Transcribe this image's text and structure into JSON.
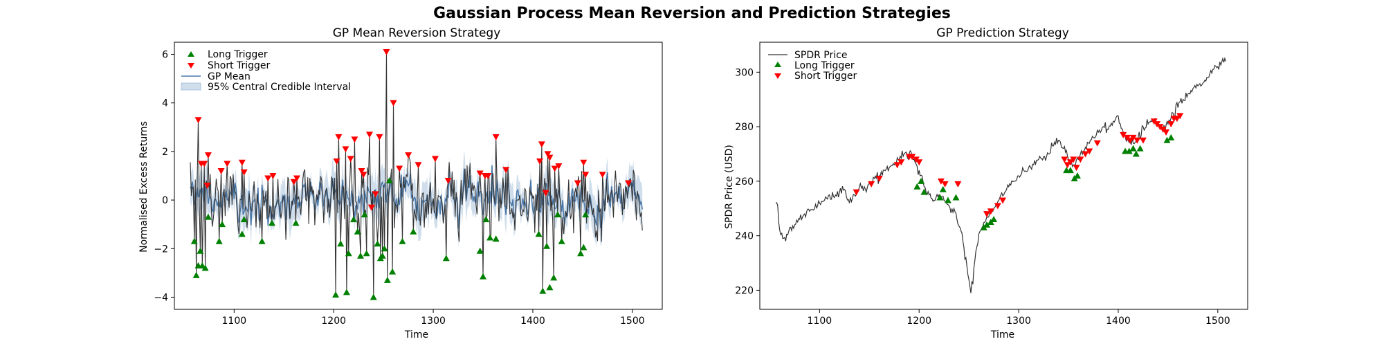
{
  "figure": {
    "title": "Gaussian Process Mean Reversion and Prediction Strategies"
  },
  "chart_data": [
    {
      "type": "line",
      "title": "GP Mean Reversion Strategy",
      "xlabel": "Time",
      "ylabel": "Normalised Excess Returns",
      "xlim": [
        1040,
        1530
      ],
      "ylim": [
        -4.5,
        6.5
      ],
      "xticks": [
        1100,
        1200,
        1300,
        1400,
        1500
      ],
      "yticks": [
        -4,
        -2,
        0,
        2,
        4,
        6
      ],
      "x_start": 1056,
      "x_end": 1510,
      "legend": {
        "placement": "top-left",
        "entries": [
          "Long Trigger",
          "Short Trigger",
          "GP Mean",
          "95% Central Credible Interval"
        ]
      },
      "long_triggers": [
        [
          1060,
          -1.7
        ],
        [
          1062,
          -3.1
        ],
        [
          1064,
          -2.7
        ],
        [
          1066,
          -2.1
        ],
        [
          1068,
          -2.7
        ],
        [
          1071,
          -2.8
        ],
        [
          1074,
          -0.7
        ],
        [
          1085,
          -1.7
        ],
        [
          1088,
          -1.0
        ],
        [
          1108,
          -1.4
        ],
        [
          1110,
          -0.8
        ],
        [
          1128,
          -1.7
        ],
        [
          1138,
          -0.95
        ],
        [
          1162,
          -0.95
        ],
        [
          1202,
          -3.9
        ],
        [
          1207,
          -1.8
        ],
        [
          1213,
          -3.8
        ],
        [
          1215,
          -2.2
        ],
        [
          1220,
          -0.8
        ],
        [
          1224,
          -1.3
        ],
        [
          1227,
          -2.3
        ],
        [
          1231,
          -0.6
        ],
        [
          1233,
          -2.2
        ],
        [
          1240,
          -4.0
        ],
        [
          1244,
          -1.8
        ],
        [
          1247,
          -2.4
        ],
        [
          1249,
          -2.3
        ],
        [
          1251,
          -2.0
        ],
        [
          1254,
          -3.3
        ],
        [
          1256,
          0.8
        ],
        [
          1259,
          -2.95
        ],
        [
          1269,
          -1.7
        ],
        [
          1280,
          -1.3
        ],
        [
          1313,
          -2.4
        ],
        [
          1347,
          -2.1
        ],
        [
          1350,
          -3.15
        ],
        [
          1353,
          -0.8
        ],
        [
          1357,
          -1.55
        ],
        [
          1363,
          -1.6
        ],
        [
          1406,
          -1.4
        ],
        [
          1410,
          -3.75
        ],
        [
          1414,
          -1.9
        ],
        [
          1417,
          -3.6
        ],
        [
          1421,
          -3.2
        ],
        [
          1425,
          -0.6
        ],
        [
          1429,
          -1.7
        ],
        [
          1448,
          -2.2
        ],
        [
          1451,
          -1.95
        ],
        [
          1453,
          -0.6
        ]
      ],
      "short_triggers": [
        [
          1064,
          3.3
        ],
        [
          1067,
          1.5
        ],
        [
          1070,
          1.5
        ],
        [
          1073,
          0.6
        ],
        [
          1074,
          1.85
        ],
        [
          1087,
          1.2
        ],
        [
          1093,
          1.5
        ],
        [
          1108,
          1.55
        ],
        [
          1110,
          1.15
        ],
        [
          1134,
          0.9
        ],
        [
          1139,
          1.0
        ],
        [
          1160,
          0.75
        ],
        [
          1163,
          0.9
        ],
        [
          1203,
          1.6
        ],
        [
          1205,
          2.6
        ],
        [
          1212,
          2.1
        ],
        [
          1217,
          1.7
        ],
        [
          1221,
          2.5
        ],
        [
          1228,
          1.2
        ],
        [
          1230,
          1.05
        ],
        [
          1236,
          2.7
        ],
        [
          1238,
          -0.3
        ],
        [
          1242,
          0.25
        ],
        [
          1246,
          2.6
        ],
        [
          1253,
          6.1
        ],
        [
          1260,
          4.0
        ],
        [
          1266,
          1.3
        ],
        [
          1275,
          1.85
        ],
        [
          1285,
          1.45
        ],
        [
          1302,
          1.7
        ],
        [
          1315,
          0.8
        ],
        [
          1347,
          1.1
        ],
        [
          1352,
          1.0
        ],
        [
          1355,
          1.0
        ],
        [
          1363,
          2.6
        ],
        [
          1373,
          1.25
        ],
        [
          1407,
          1.6
        ],
        [
          1409,
          2.3
        ],
        [
          1413,
          0.3
        ],
        [
          1415,
          1.9
        ],
        [
          1417,
          1.75
        ],
        [
          1422,
          1.3
        ],
        [
          1426,
          1.4
        ],
        [
          1445,
          0.7
        ],
        [
          1451,
          1.55
        ],
        [
          1453,
          1.05
        ],
        [
          1470,
          1.05
        ],
        [
          1496,
          0.7
        ]
      ]
    },
    {
      "type": "line",
      "title": "GP Prediction Strategy",
      "xlabel": "Time",
      "ylabel": "SPDR Price (USD)",
      "xlim": [
        1040,
        1530
      ],
      "ylim": [
        213,
        311
      ],
      "xticks": [
        1100,
        1200,
        1300,
        1400,
        1500
      ],
      "yticks": [
        220,
        240,
        260,
        280,
        300
      ],
      "legend": {
        "placement": "top-left",
        "entries": [
          "SPDR Price",
          "Long Trigger",
          "Short Trigger"
        ]
      },
      "price_knots": [
        [
          1056,
          252
        ],
        [
          1058,
          251
        ],
        [
          1060,
          242
        ],
        [
          1063,
          239
        ],
        [
          1066,
          238
        ],
        [
          1070,
          243
        ],
        [
          1075,
          244
        ],
        [
          1080,
          246
        ],
        [
          1085,
          248
        ],
        [
          1090,
          249
        ],
        [
          1095,
          250
        ],
        [
          1100,
          252
        ],
        [
          1105,
          253
        ],
        [
          1110,
          255
        ],
        [
          1115,
          254
        ],
        [
          1120,
          256
        ],
        [
          1125,
          257
        ],
        [
          1130,
          252
        ],
        [
          1135,
          255
        ],
        [
          1140,
          258
        ],
        [
          1145,
          258
        ],
        [
          1150,
          259
        ],
        [
          1155,
          261
        ],
        [
          1160,
          262
        ],
        [
          1165,
          264
        ],
        [
          1170,
          265
        ],
        [
          1175,
          266
        ],
        [
          1180,
          268
        ],
        [
          1185,
          270
        ],
        [
          1190,
          270
        ],
        [
          1195,
          268
        ],
        [
          1200,
          264
        ],
        [
          1205,
          258
        ],
        [
          1210,
          255
        ],
        [
          1215,
          253
        ],
        [
          1220,
          255
        ],
        [
          1225,
          253
        ],
        [
          1230,
          251
        ],
        [
          1235,
          250
        ],
        [
          1238,
          246
        ],
        [
          1241,
          243
        ],
        [
          1244,
          238
        ],
        [
          1247,
          232
        ],
        [
          1250,
          224
        ],
        [
          1252,
          219
        ],
        [
          1255,
          228
        ],
        [
          1258,
          236
        ],
        [
          1262,
          242
        ],
        [
          1266,
          245
        ],
        [
          1270,
          247
        ],
        [
          1275,
          250
        ],
        [
          1280,
          253
        ],
        [
          1285,
          255
        ],
        [
          1290,
          258
        ],
        [
          1295,
          260
        ],
        [
          1300,
          262
        ],
        [
          1305,
          264
        ],
        [
          1310,
          265
        ],
        [
          1315,
          266
        ],
        [
          1320,
          268
        ],
        [
          1325,
          269
        ],
        [
          1330,
          270
        ],
        [
          1335,
          273
        ],
        [
          1340,
          275
        ],
        [
          1345,
          272
        ],
        [
          1350,
          268
        ],
        [
          1355,
          266
        ],
        [
          1360,
          268
        ],
        [
          1365,
          271
        ],
        [
          1370,
          274
        ],
        [
          1375,
          276
        ],
        [
          1380,
          278
        ],
        [
          1385,
          280
        ],
        [
          1390,
          279
        ],
        [
          1395,
          282
        ],
        [
          1400,
          284
        ],
        [
          1405,
          278
        ],
        [
          1410,
          275
        ],
        [
          1415,
          274
        ],
        [
          1420,
          276
        ],
        [
          1425,
          280
        ],
        [
          1430,
          281
        ],
        [
          1435,
          282
        ],
        [
          1440,
          281
        ],
        [
          1445,
          279
        ],
        [
          1450,
          281
        ],
        [
          1455,
          285
        ],
        [
          1460,
          287
        ],
        [
          1465,
          290
        ],
        [
          1470,
          292
        ],
        [
          1475,
          294
        ],
        [
          1480,
          295
        ],
        [
          1485,
          296
        ],
        [
          1490,
          298
        ],
        [
          1495,
          301
        ],
        [
          1500,
          302
        ],
        [
          1505,
          305
        ],
        [
          1508,
          304
        ]
      ],
      "long_triggers": [
        [
          1198,
          258
        ],
        [
          1202,
          260
        ],
        [
          1205,
          256
        ],
        [
          1221,
          254
        ],
        [
          1224,
          257
        ],
        [
          1229,
          253
        ],
        [
          1237,
          254
        ],
        [
          1265,
          243
        ],
        [
          1268,
          244
        ],
        [
          1272,
          245
        ],
        [
          1275,
          246
        ],
        [
          1348,
          264
        ],
        [
          1352,
          264
        ],
        [
          1356,
          261
        ],
        [
          1359,
          262
        ],
        [
          1407,
          271
        ],
        [
          1411,
          271
        ],
        [
          1415,
          272
        ],
        [
          1418,
          270
        ],
        [
          1422,
          272
        ],
        [
          1449,
          275
        ],
        [
          1453,
          276
        ]
      ],
      "short_triggers": [
        [
          1137,
          256
        ],
        [
          1152,
          259
        ],
        [
          1160,
          261
        ],
        [
          1178,
          266
        ],
        [
          1182,
          267
        ],
        [
          1190,
          269
        ],
        [
          1193,
          269
        ],
        [
          1197,
          268
        ],
        [
          1200,
          267
        ],
        [
          1222,
          260
        ],
        [
          1226,
          259
        ],
        [
          1239,
          259
        ],
        [
          1268,
          248
        ],
        [
          1272,
          249
        ],
        [
          1279,
          251
        ],
        [
          1284,
          253
        ],
        [
          1346,
          268
        ],
        [
          1349,
          266
        ],
        [
          1352,
          267
        ],
        [
          1355,
          268
        ],
        [
          1358,
          265
        ],
        [
          1362,
          268
        ],
        [
          1367,
          270
        ],
        [
          1371,
          271
        ],
        [
          1379,
          274
        ],
        [
          1405,
          277
        ],
        [
          1409,
          276
        ],
        [
          1412,
          275
        ],
        [
          1415,
          276
        ],
        [
          1419,
          275
        ],
        [
          1425,
          275
        ],
        [
          1436,
          282
        ],
        [
          1439,
          281
        ],
        [
          1442,
          280
        ],
        [
          1445,
          279
        ],
        [
          1448,
          278
        ],
        [
          1453,
          281
        ],
        [
          1456,
          283
        ],
        [
          1459,
          283
        ],
        [
          1462,
          284
        ]
      ]
    }
  ]
}
